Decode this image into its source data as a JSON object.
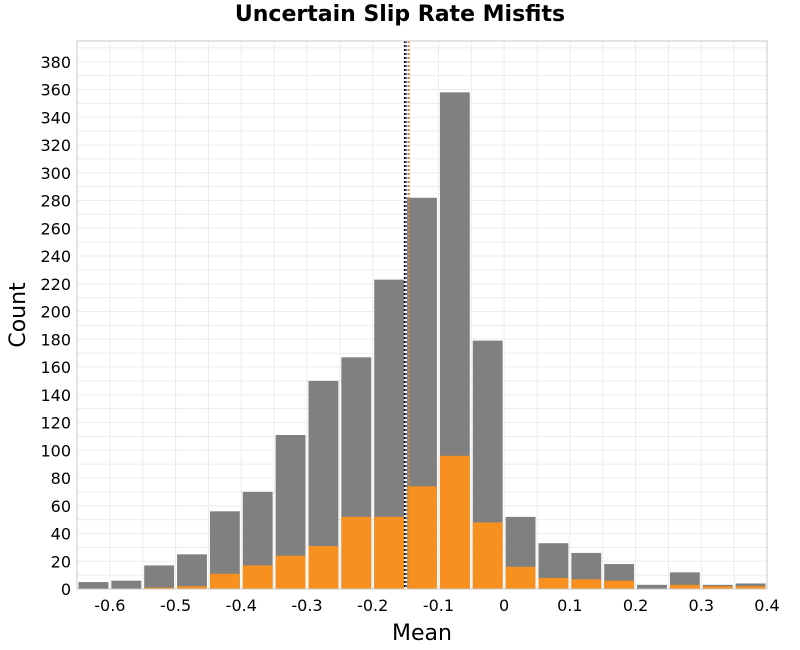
{
  "chart_data": {
    "type": "bar",
    "title": "Uncertain Slip Rate Misfits",
    "xlabel": "Mean",
    "ylabel": "Count",
    "xlim": [
      -0.65,
      0.4
    ],
    "ylim": [
      0,
      395
    ],
    "x_ticks": [
      -0.6,
      -0.5,
      -0.4,
      -0.3,
      -0.2,
      -0.1,
      0,
      0.1,
      0.2,
      0.3,
      0.4
    ],
    "x_tick_labels": [
      "-0.6",
      "-0.5",
      "-0.4",
      "-0.3",
      "-0.2",
      "-0.1",
      "0",
      "0.1",
      "0.2",
      "0.3",
      "0.4"
    ],
    "y_ticks": [
      0,
      20,
      40,
      60,
      80,
      100,
      120,
      140,
      160,
      180,
      200,
      220,
      240,
      260,
      280,
      300,
      320,
      340,
      360,
      380
    ],
    "grid": true,
    "bin_width": 0.05,
    "bin_centers": [
      -0.625,
      -0.575,
      -0.525,
      -0.475,
      -0.425,
      -0.375,
      -0.325,
      -0.275,
      -0.225,
      -0.175,
      -0.125,
      -0.075,
      -0.025,
      0.025,
      0.075,
      0.125,
      0.175,
      0.225,
      0.275,
      0.325,
      0.375
    ],
    "series": [
      {
        "color": "#808080",
        "values": [
          5,
          6,
          17,
          25,
          56,
          70,
          111,
          150,
          167,
          223,
          282,
          358,
          179,
          52,
          33,
          26,
          18,
          3,
          12,
          3,
          4
        ]
      },
      {
        "color": "#f7901e",
        "values": [
          0,
          0,
          1,
          2,
          11,
          17,
          24,
          31,
          52,
          52,
          74,
          96,
          48,
          16,
          8,
          7,
          6,
          0,
          3,
          2,
          2
        ]
      }
    ],
    "reference_lines": [
      {
        "x": -0.151,
        "color": "#000000",
        "style": "dotted"
      },
      {
        "x": -0.149,
        "color": "#4a6fa5",
        "style": "dotted"
      },
      {
        "x": -0.145,
        "color": "#e08a2c",
        "style": "dotted"
      }
    ]
  }
}
